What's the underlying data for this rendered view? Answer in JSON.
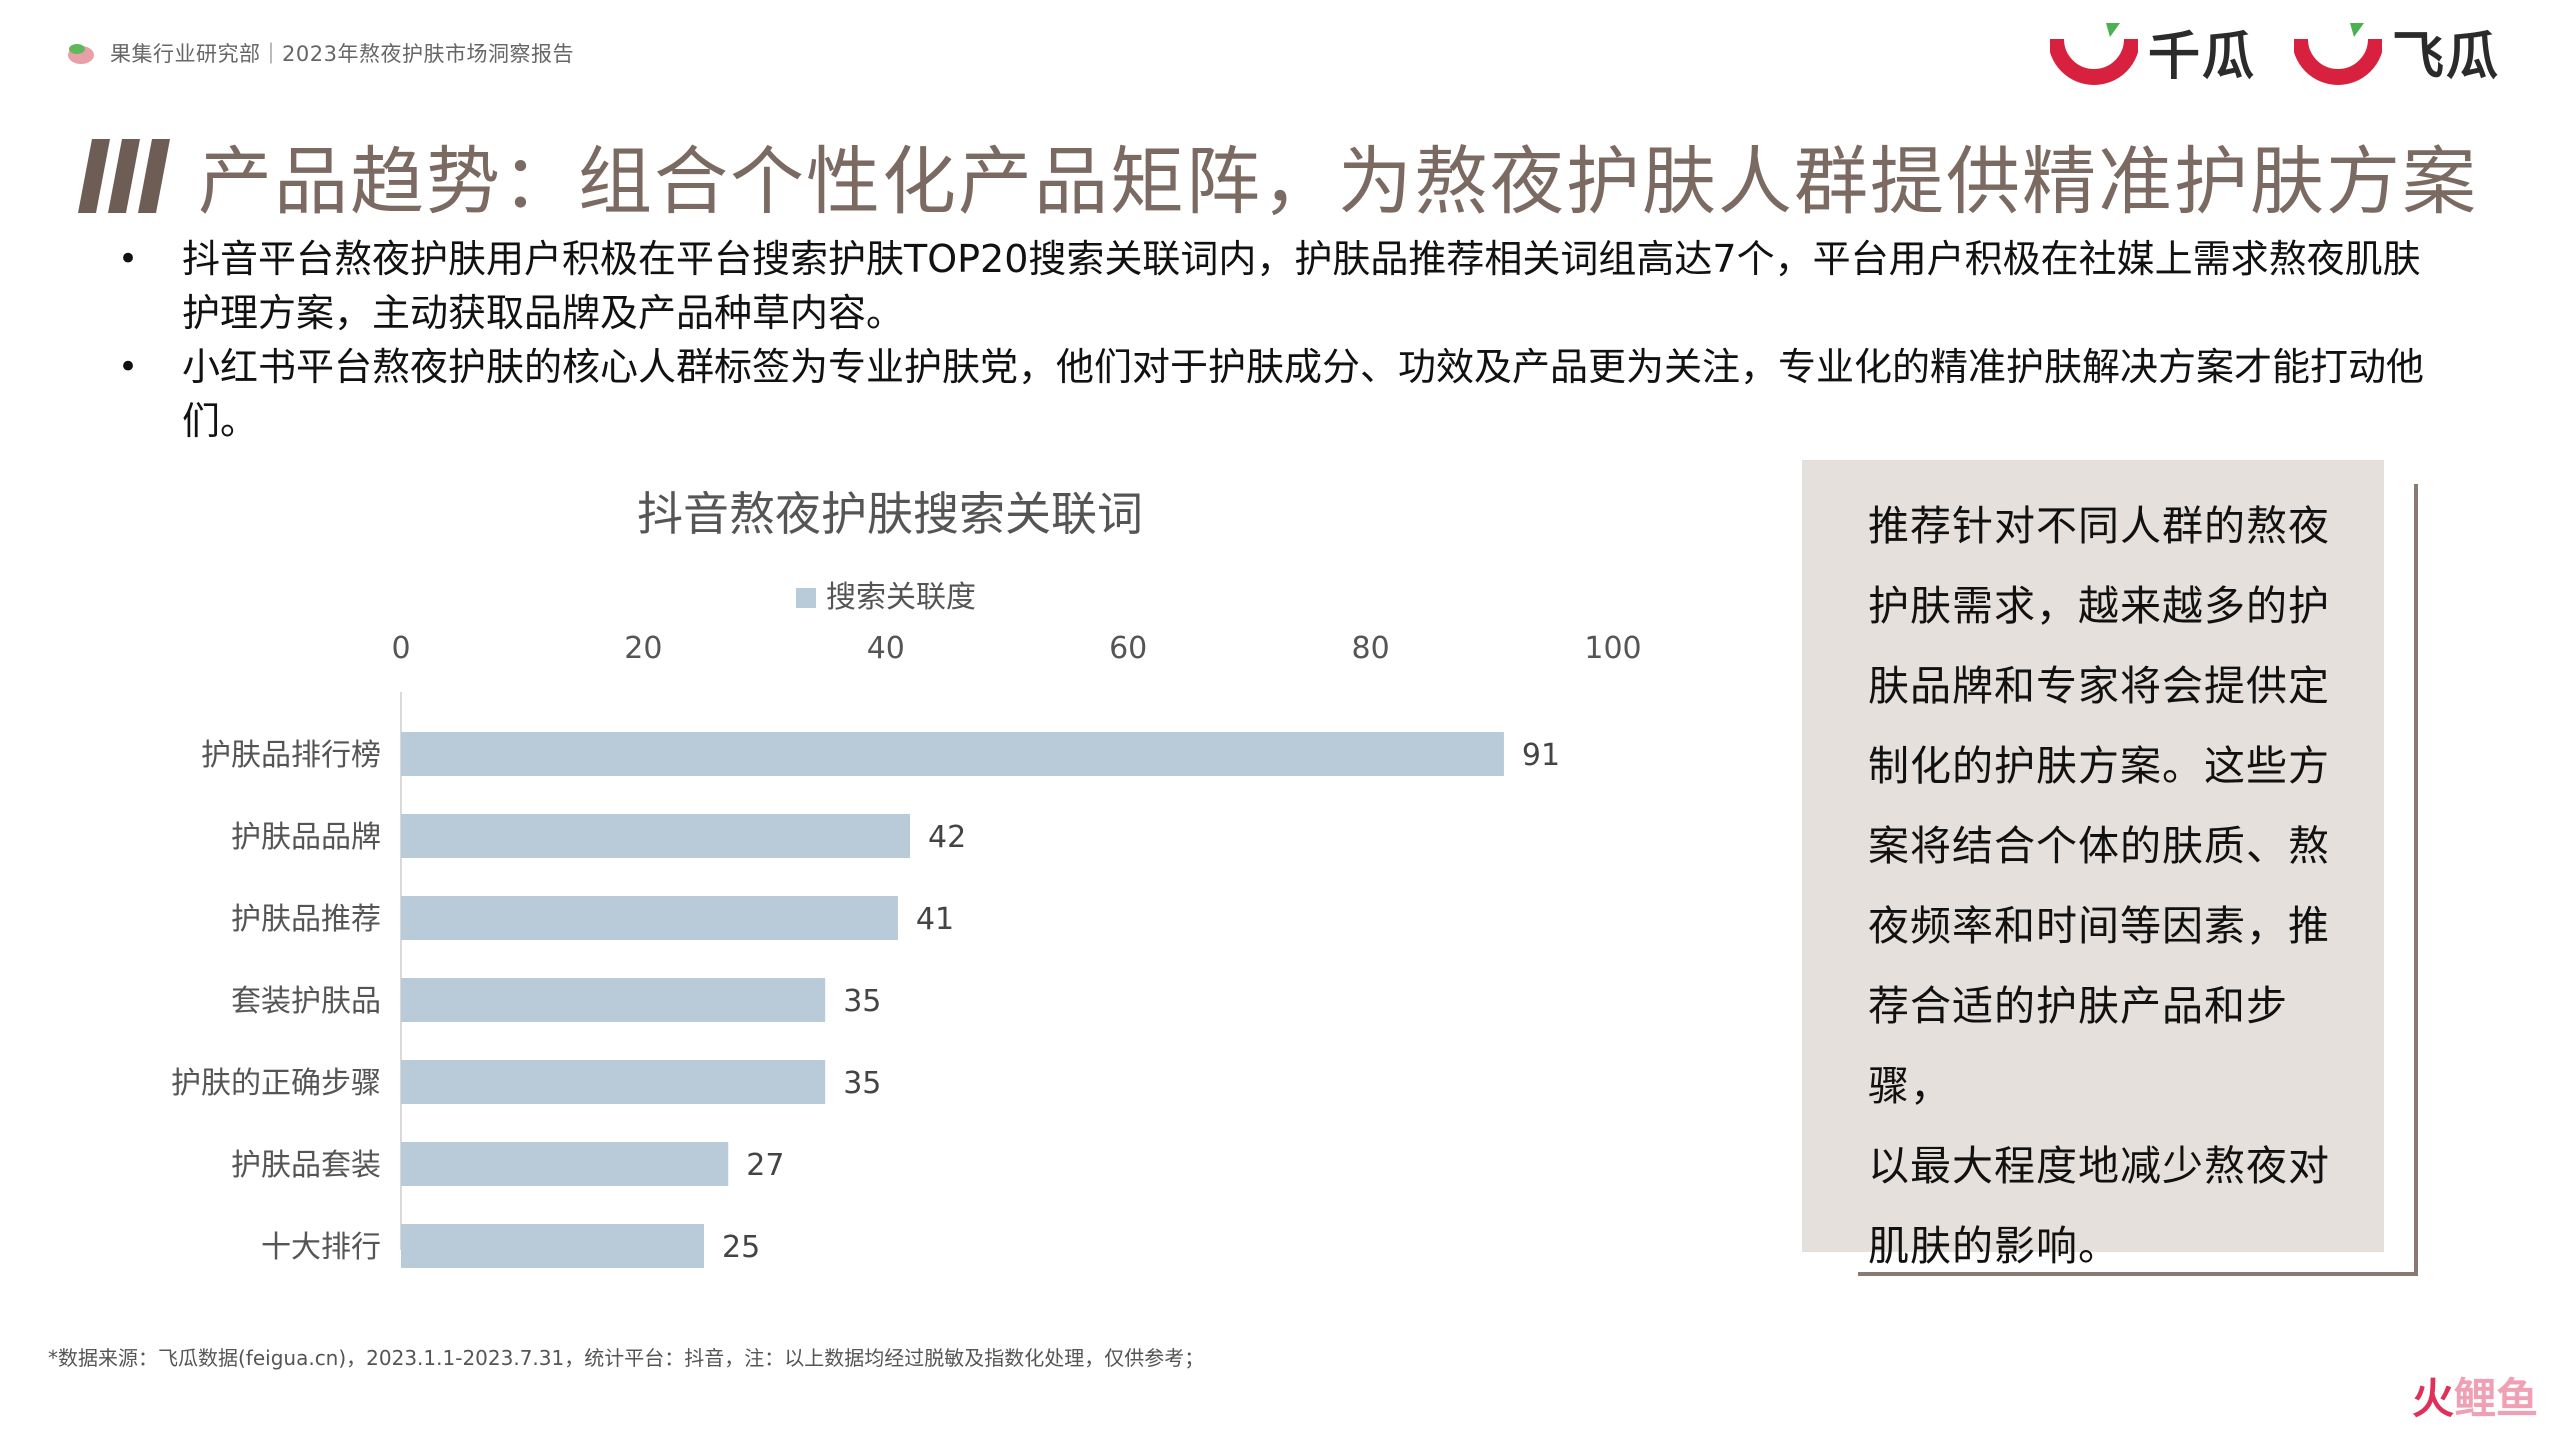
{
  "header": {
    "dept": "果集行业研究部｜2023年熬夜护肤市场洞察报告",
    "brand_1": "千瓜",
    "brand_2": "飞瓜",
    "brand_color": "#d8213f",
    "brand_accent": "#4caf50"
  },
  "title": "产品趋势：组合个性化产品矩阵，为熬夜护肤人群提供精准护肤方案",
  "bullets": [
    "抖音平台熬夜护肤用户积极在平台搜索护肤TOP20搜索关联词内，护肤品推荐相关词组高达7个，平台用户积极在社媒上需求熬夜肌肤护理方案，主动获取品牌及产品种草内容。",
    "小红书平台熬夜护肤的核心人群标签为专业护肤党，他们对于护肤成分、功效及产品更为关注，专业化的精准护肤解决方案才能打动他们。"
  ],
  "chart_data": {
    "type": "bar",
    "orientation": "horizontal",
    "title": "抖音熬夜护肤搜索关联词",
    "categories": [
      "护肤品排行榜",
      "护肤品品牌",
      "护肤品推荐",
      "套装护肤品",
      "护肤的正确步骤",
      "护肤品套装",
      "十大排行"
    ],
    "series": [
      {
        "name": "搜索关联度",
        "values": [
          91,
          42,
          41,
          35,
          35,
          27,
          25
        ],
        "color": "#b9cad9"
      }
    ],
    "xlim": [
      0,
      100
    ],
    "x_ticks": [
      "0",
      "20",
      "40",
      "60",
      "80",
      "100"
    ],
    "x_axis_position": "top",
    "legend_position": "top",
    "grid": false,
    "data_labels": true
  },
  "side_panel": {
    "lines": [
      "推荐针对不同人群的熬夜",
      "护肤需求，越来越多的护",
      "肤品牌和专家将会提供定",
      "制化的护肤方案。这些方",
      "案将结合个体的肤质、熬",
      "夜频率和时间等因素，推",
      "荐合适的护肤产品和步骤，",
      "以最大程度地减少熬夜对",
      "肌肤的影响。"
    ]
  },
  "source": "*数据来源：飞瓜数据(feigua.cn)，2023.1.1-2023.7.31，统计平台：抖音，注：以上数据均经过脱敏及指数化处理，仅供参考；",
  "corner": {
    "left": "火",
    "right": "鲤鱼"
  }
}
